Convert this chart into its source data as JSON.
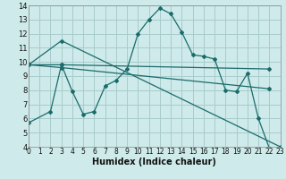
{
  "bg_color": "#ceeaea",
  "grid_color": "#a8cccc",
  "line_color": "#1a6b6b",
  "xlabel": "Humidex (Indice chaleur)",
  "ylim": [
    4,
    14
  ],
  "xlim": [
    0,
    23
  ],
  "yticks": [
    4,
    5,
    6,
    7,
    8,
    9,
    10,
    11,
    12,
    13,
    14
  ],
  "xticks": [
    0,
    1,
    2,
    3,
    4,
    5,
    6,
    7,
    8,
    9,
    10,
    11,
    12,
    13,
    14,
    15,
    16,
    17,
    18,
    19,
    20,
    21,
    22,
    23
  ],
  "series": [
    {
      "x": [
        0,
        2,
        3,
        4,
        5,
        6,
        7,
        8,
        9,
        10,
        11,
        12,
        13,
        14,
        15,
        16,
        17,
        18,
        19,
        20,
        21,
        22,
        23
      ],
      "y": [
        5.7,
        6.5,
        9.8,
        7.9,
        6.3,
        6.5,
        8.3,
        8.7,
        9.5,
        12.0,
        13.0,
        13.8,
        13.4,
        12.1,
        10.5,
        10.4,
        10.2,
        8.0,
        7.9,
        9.2,
        6.0,
        3.9,
        3.9
      ]
    },
    {
      "x": [
        0,
        3,
        22
      ],
      "y": [
        9.8,
        9.8,
        9.5
      ]
    },
    {
      "x": [
        0,
        3,
        22
      ],
      "y": [
        9.8,
        9.6,
        8.1
      ]
    },
    {
      "x": [
        0,
        3,
        23
      ],
      "y": [
        9.8,
        11.5,
        4.0
      ]
    }
  ]
}
